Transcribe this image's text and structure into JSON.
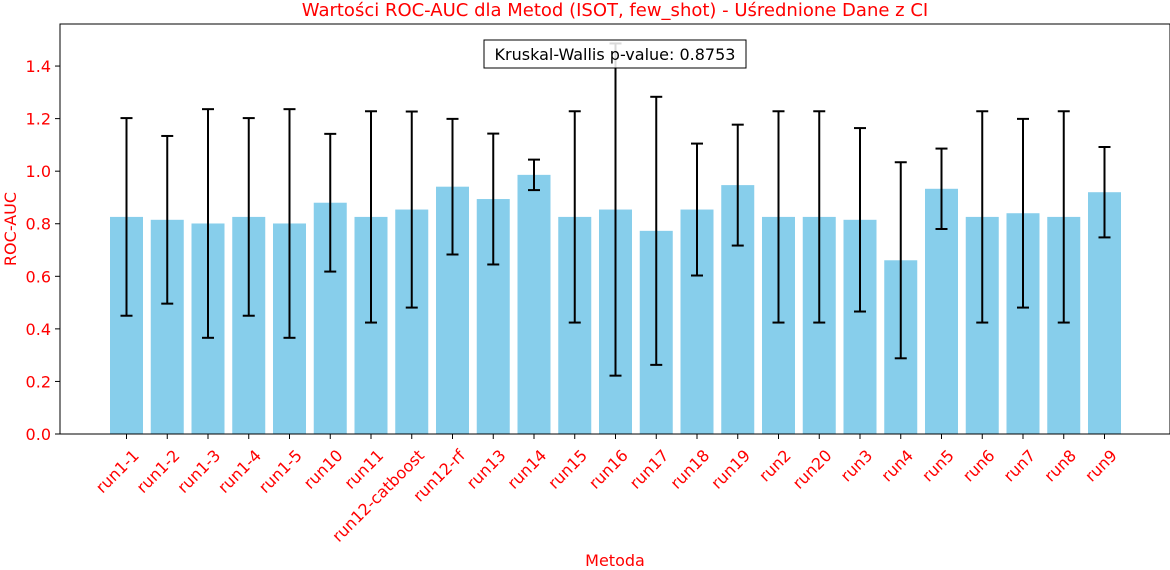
{
  "chart_data": {
    "type": "bar",
    "title": "Wartości ROC-AUC dla Metod (ISOT, few_shot) - Uśrednione Dane z CI",
    "xlabel": "Metoda",
    "ylabel": "ROC-AUC",
    "annotation": "Kruskal-Wallis p-value: 0.8753",
    "ylim": [
      0,
      1.56
    ],
    "yticks": [
      0.0,
      0.2,
      0.4,
      0.6,
      0.8,
      1.0,
      1.2,
      1.4
    ],
    "ytick_labels": [
      "0.0",
      "0.2",
      "0.4",
      "0.6",
      "0.8",
      "1.0",
      "1.2",
      "1.4"
    ],
    "grid": false,
    "colors": {
      "bar": "#87ceeb",
      "errorbar": "#000000",
      "label": "#ff0000",
      "axis": "#000000"
    },
    "categories": [
      "run1-1",
      "run1-2",
      "run1-3",
      "run1-4",
      "run1-5",
      "run10",
      "run11",
      "run12-catboost",
      "run12-rf",
      "run13",
      "run14",
      "run15",
      "run16",
      "run17",
      "run18",
      "run19",
      "run2",
      "run20",
      "run3",
      "run4",
      "run5",
      "run6",
      "run7",
      "run8",
      "run9"
    ],
    "values": [
      0.826,
      0.815,
      0.801,
      0.826,
      0.801,
      0.88,
      0.826,
      0.854,
      0.941,
      0.894,
      0.986,
      0.826,
      0.854,
      0.773,
      0.854,
      0.947,
      0.826,
      0.826,
      0.815,
      0.661,
      0.933,
      0.826,
      0.84,
      0.826,
      0.92
    ],
    "ci_lower": [
      0.45,
      0.496,
      0.366,
      0.45,
      0.366,
      0.618,
      0.424,
      0.481,
      0.683,
      0.645,
      0.928,
      0.424,
      0.222,
      0.263,
      0.603,
      0.717,
      0.424,
      0.424,
      0.466,
      0.288,
      0.78,
      0.424,
      0.481,
      0.424,
      0.748
    ],
    "ci_upper": [
      1.202,
      1.134,
      1.236,
      1.202,
      1.236,
      1.142,
      1.228,
      1.227,
      1.199,
      1.143,
      1.044,
      1.228,
      1.486,
      1.283,
      1.105,
      1.177,
      1.228,
      1.228,
      1.164,
      1.034,
      1.086,
      1.228,
      1.199,
      1.228,
      1.092
    ]
  }
}
